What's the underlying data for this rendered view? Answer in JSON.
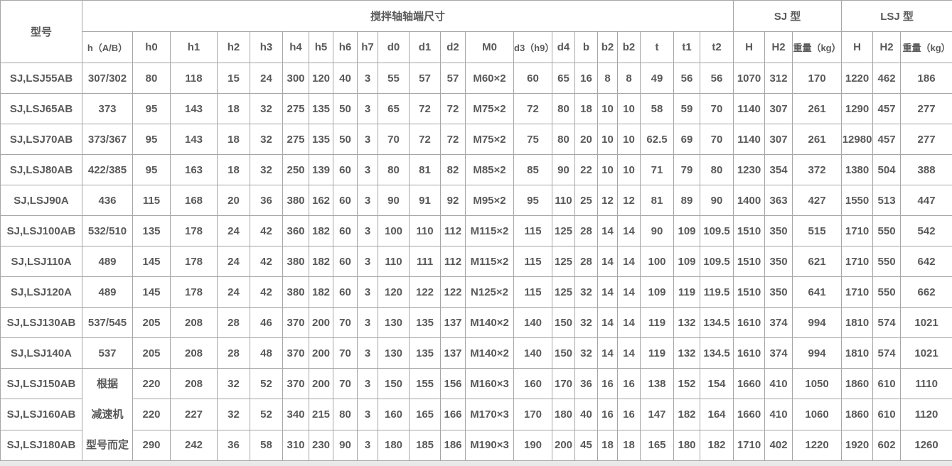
{
  "table": {
    "top_headers": [
      {
        "label": "型号",
        "colspan": 1,
        "rowspan": 2
      },
      {
        "label": "搅拌轴轴端尺寸",
        "colspan": 21,
        "rowspan": 1
      },
      {
        "label": "SJ 型",
        "colspan": 3,
        "rowspan": 1
      },
      {
        "label": "LSJ 型",
        "colspan": 3,
        "rowspan": 1
      }
    ],
    "sub_headers": [
      "h（A/B）",
      "h0",
      "h1",
      "h2",
      "h3",
      "h4",
      "h5",
      "h6",
      "h7",
      "d0",
      "d1",
      "d2",
      "M0",
      "d3（h9）",
      "d4",
      "b",
      "b2",
      "b2",
      "t",
      "t1",
      "t2",
      "H",
      "H2",
      "重量（kg）",
      "H",
      "H2",
      "重量（kg）"
    ],
    "rows": [
      [
        "SJ,LSJ55AB",
        "307/302",
        "80",
        "118",
        "15",
        "24",
        "300",
        "120",
        "40",
        "3",
        "55",
        "57",
        "57",
        "M60×2",
        "60",
        "65",
        "16",
        "8",
        "8",
        "49",
        "56",
        "56",
        "1070",
        "312",
        "170",
        "1220",
        "462",
        "186"
      ],
      [
        "SJ,LSJ65AB",
        "373",
        "95",
        "143",
        "18",
        "32",
        "275",
        "135",
        "50",
        "3",
        "65",
        "72",
        "72",
        "M75×2",
        "72",
        "80",
        "18",
        "10",
        "10",
        "58",
        "59",
        "70",
        "1140",
        "307",
        "261",
        "1290",
        "457",
        "277"
      ],
      [
        "SJ,LSJ70AB",
        "373/367",
        "95",
        "143",
        "18",
        "32",
        "275",
        "135",
        "50",
        "3",
        "70",
        "72",
        "72",
        "M75×2",
        "75",
        "80",
        "20",
        "10",
        "10",
        "62.5",
        "69",
        "70",
        "1140",
        "307",
        "261",
        "12980",
        "457",
        "277"
      ],
      [
        "SJ,LSJ80AB",
        "422/385",
        "95",
        "163",
        "18",
        "32",
        "250",
        "139",
        "60",
        "3",
        "80",
        "81",
        "82",
        "M85×2",
        "85",
        "90",
        "22",
        "10",
        "10",
        "71",
        "79",
        "80",
        "1230",
        "354",
        "372",
        "1380",
        "504",
        "388"
      ],
      [
        "SJ,LSJ90A",
        "436",
        "115",
        "168",
        "20",
        "36",
        "380",
        "162",
        "60",
        "3",
        "90",
        "91",
        "92",
        "M95×2",
        "95",
        "110",
        "25",
        "12",
        "12",
        "81",
        "89",
        "90",
        "1400",
        "363",
        "427",
        "1550",
        "513",
        "447"
      ],
      [
        "SJ,LSJ100AB",
        "532/510",
        "135",
        "178",
        "24",
        "42",
        "360",
        "182",
        "60",
        "3",
        "100",
        "110",
        "112",
        "M115×2",
        "115",
        "125",
        "28",
        "14",
        "14",
        "90",
        "109",
        "109.5",
        "1510",
        "350",
        "515",
        "1710",
        "550",
        "542"
      ],
      [
        "SJ,LSJ110A",
        "489",
        "145",
        "178",
        "24",
        "42",
        "380",
        "182",
        "60",
        "3",
        "110",
        "111",
        "112",
        "M115×2",
        "115",
        "125",
        "28",
        "14",
        "14",
        "100",
        "109",
        "109.5",
        "1510",
        "350",
        "621",
        "1710",
        "550",
        "642"
      ],
      [
        "SJ,LSJ120A",
        "489",
        "145",
        "178",
        "24",
        "42",
        "380",
        "182",
        "60",
        "3",
        "120",
        "122",
        "122",
        "N125×2",
        "115",
        "125",
        "32",
        "14",
        "14",
        "109",
        "119",
        "119.5",
        "1510",
        "350",
        "641",
        "1710",
        "550",
        "662"
      ],
      [
        "SJ,LSJ130AB",
        "537/545",
        "205",
        "208",
        "28",
        "46",
        "370",
        "200",
        "70",
        "3",
        "130",
        "135",
        "137",
        "M140×2",
        "140",
        "150",
        "32",
        "14",
        "14",
        "119",
        "132",
        "134.5",
        "1610",
        "374",
        "994",
        "1810",
        "574",
        "1021"
      ],
      [
        "SJ,LSJ140A",
        "537",
        "205",
        "208",
        "28",
        "48",
        "370",
        "200",
        "70",
        "3",
        "130",
        "135",
        "137",
        "M140×2",
        "140",
        "150",
        "32",
        "14",
        "14",
        "119",
        "132",
        "134.5",
        "1610",
        "374",
        "994",
        "1810",
        "574",
        "1021"
      ],
      [
        "SJ,LSJ150AB",
        {
          "rowspan": 3,
          "lines": [
            "根据",
            "减速机",
            "型号而定"
          ]
        },
        "220",
        "208",
        "32",
        "52",
        "370",
        "200",
        "70",
        "3",
        "150",
        "155",
        "156",
        "M160×3",
        "160",
        "170",
        "36",
        "16",
        "16",
        "138",
        "152",
        "154",
        "1660",
        "410",
        "1050",
        "1860",
        "610",
        "1110"
      ],
      [
        "SJ,LSJ160AB",
        null,
        "220",
        "227",
        "32",
        "52",
        "340",
        "215",
        "80",
        "3",
        "160",
        "165",
        "166",
        "M170×3",
        "170",
        "180",
        "40",
        "16",
        "16",
        "147",
        "182",
        "164",
        "1660",
        "410",
        "1060",
        "1860",
        "610",
        "1120"
      ],
      [
        "SJ,LSJ180AB",
        null,
        "290",
        "242",
        "36",
        "58",
        "310",
        "230",
        "90",
        "3",
        "180",
        "185",
        "186",
        "M190×3",
        "190",
        "200",
        "45",
        "18",
        "18",
        "165",
        "180",
        "182",
        "1710",
        "402",
        "1220",
        "1920",
        "602",
        "1260"
      ]
    ],
    "colors": {
      "text": "#595959",
      "border": "#a6a6a6",
      "cell_background": "#ffffff",
      "page_background": "#e9e9e9"
    }
  }
}
